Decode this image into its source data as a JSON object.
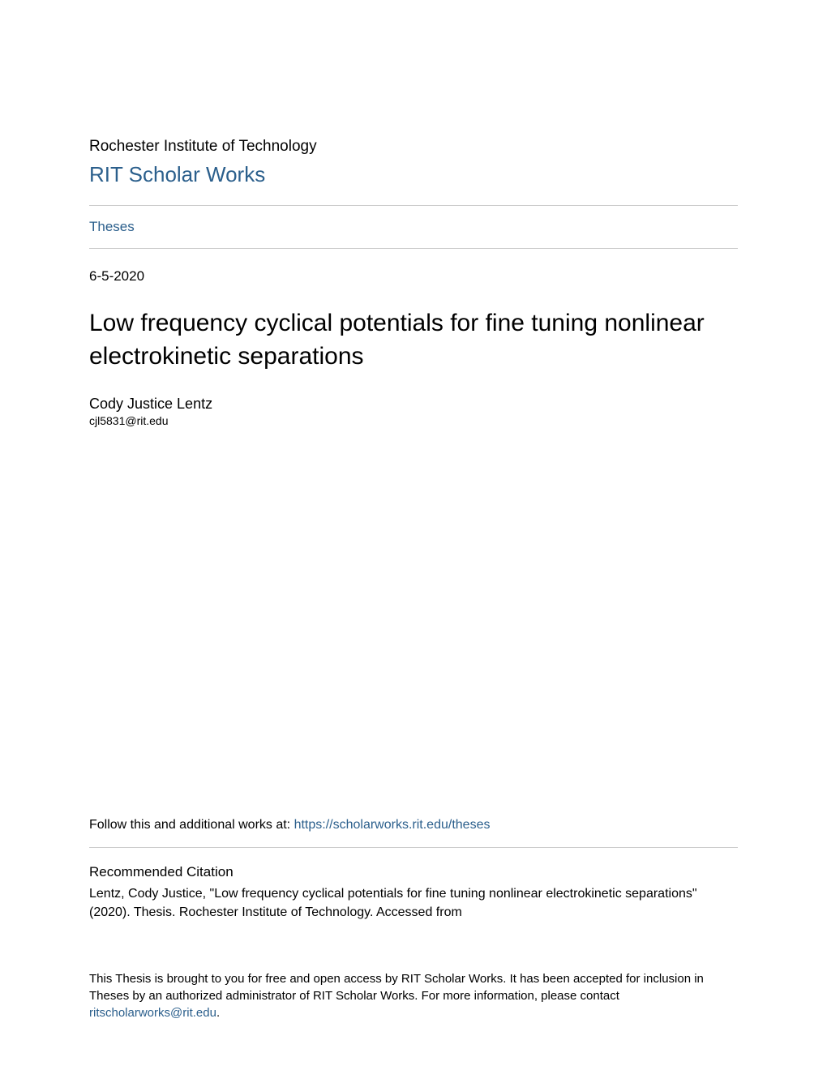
{
  "header": {
    "institution": "Rochester Institute of Technology",
    "repository": "RIT Scholar Works",
    "collection": "Theses"
  },
  "record": {
    "date": "6-5-2020",
    "title": "Low frequency cyclical potentials for fine tuning nonlinear electrokinetic separations",
    "author": "Cody Justice Lentz",
    "email": "cjl5831@rit.edu"
  },
  "follow": {
    "prefix": "Follow this and additional works at: ",
    "link_text": "https://scholarworks.rit.edu/theses"
  },
  "citation": {
    "heading": "Recommended Citation",
    "text": "Lentz, Cody Justice, \"Low frequency cyclical potentials for fine tuning nonlinear electrokinetic separations\" (2020). Thesis. Rochester Institute of Technology. Accessed from"
  },
  "footer": {
    "text": "This Thesis is brought to you for free and open access by RIT Scholar Works. It has been accepted for inclusion in Theses by an authorized administrator of RIT Scholar Works. For more information, please contact ",
    "link_text": "ritscholarworks@rit.edu",
    "suffix": "."
  },
  "colors": {
    "link": "#2b5f8c",
    "text": "#000000",
    "divider": "#cccccc",
    "background": "#ffffff"
  },
  "typography": {
    "institution_size": 19,
    "repo_title_size": 26,
    "collection_size": 17,
    "date_size": 17,
    "title_size": 30,
    "author_size": 18,
    "email_size": 14,
    "follow_size": 16,
    "citation_heading_size": 17,
    "citation_text_size": 16,
    "footer_size": 15
  }
}
